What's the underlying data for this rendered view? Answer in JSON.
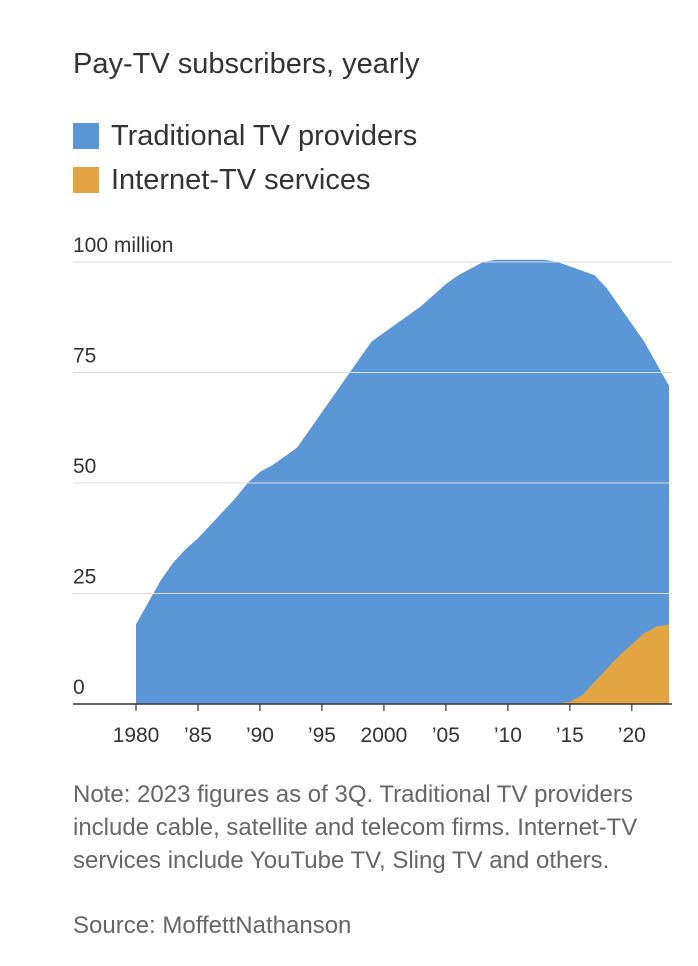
{
  "chart_data": {
    "type": "area",
    "title": "Pay-TV subscribers, yearly",
    "series": [
      {
        "name": "Traditional TV providers",
        "color": "#5b96d6",
        "x": [
          1980,
          1981,
          1982,
          1983,
          1984,
          1985,
          1986,
          1987,
          1988,
          1989,
          1990,
          1991,
          1992,
          1993,
          1994,
          1995,
          1996,
          1997,
          1998,
          1999,
          2000,
          2001,
          2002,
          2003,
          2004,
          2005,
          2006,
          2007,
          2008,
          2009,
          2010,
          2011,
          2012,
          2013,
          2014,
          2015,
          2016,
          2017,
          2018,
          2019,
          2020,
          2021,
          2022,
          2023
        ],
        "values": [
          18,
          23,
          28,
          32,
          35,
          37.5,
          40.5,
          43.5,
          46.5,
          50,
          52.5,
          54,
          56,
          58,
          62,
          66,
          70,
          74,
          78,
          82,
          84,
          86,
          88,
          90,
          92.5,
          95,
          97,
          98.5,
          100,
          100.5,
          100.5,
          100.5,
          100.5,
          100.5,
          100,
          99,
          98,
          97,
          94,
          90,
          86,
          82,
          77,
          72
        ]
      },
      {
        "name": "Internet-TV services",
        "color": "#e2a541",
        "x": [
          2014,
          2015,
          2016,
          2017,
          2018,
          2019,
          2020,
          2021,
          2022,
          2023
        ],
        "values": [
          0,
          0.5,
          2,
          5,
          8,
          11,
          13.5,
          16,
          17.5,
          18
        ]
      }
    ],
    "x_ticks": [
      1980,
      1985,
      1990,
      1995,
      2000,
      2005,
      2010,
      2015,
      2020
    ],
    "x_tick_labels": [
      "1980",
      "’85",
      "’90",
      "’95",
      "2000",
      "’05",
      "’10",
      "’15",
      "’20"
    ],
    "y_ticks": [
      0,
      25,
      50,
      75,
      100
    ],
    "y_tick_labels": [
      "0",
      "25",
      "50",
      "75",
      "100 million"
    ],
    "ylim": [
      0,
      100
    ],
    "xlim": [
      1980,
      2023
    ],
    "grid": true
  },
  "note": "Note: 2023 figures as of 3Q. Traditional TV providers include cable, satellite and telecom firms. Internet-TV services include YouTube TV, Sling TV and others.",
  "source": "Source: MoffettNathanson"
}
